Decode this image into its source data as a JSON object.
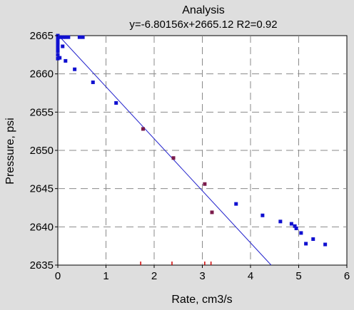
{
  "chart_data": {
    "type": "scatter",
    "title": "Analysis",
    "subtitle": "y=-6.80156x+2665.12  R2=0.92",
    "xlabel": "Rate, cm3/s",
    "ylabel": "Pressure, psi",
    "xlim": [
      0,
      6
    ],
    "ylim": [
      2635,
      2665
    ],
    "x_ticks": [
      0,
      1,
      2,
      3,
      4,
      5,
      6
    ],
    "y_ticks": [
      2635,
      2640,
      2645,
      2650,
      2655,
      2660,
      2665
    ],
    "grid": true,
    "fit_line": {
      "slope": -6.80156,
      "intercept": 2665.12,
      "color": "#2222cc"
    },
    "series": [
      {
        "color": "#1010d0",
        "points": [
          [
            0.0,
            2665.0
          ],
          [
            0.0,
            2664.6
          ],
          [
            0.0,
            2664.2
          ],
          [
            0.0,
            2663.8
          ],
          [
            0.0,
            2663.4
          ],
          [
            0.0,
            2663.0
          ],
          [
            0.0,
            2662.5
          ],
          [
            0.0,
            2662.0
          ],
          [
            0.02,
            2664.8
          ],
          [
            0.04,
            2662.1
          ],
          [
            0.07,
            2664.8
          ],
          [
            0.12,
            2664.8
          ],
          [
            0.16,
            2664.8
          ],
          [
            0.22,
            2664.8
          ],
          [
            0.1,
            2663.6
          ],
          [
            0.16,
            2661.7
          ],
          [
            0.35,
            2660.6
          ],
          [
            0.45,
            2664.8
          ],
          [
            0.52,
            2664.8
          ],
          [
            0.73,
            2658.9
          ],
          [
            1.21,
            2656.2
          ],
          [
            3.7,
            2643.0
          ],
          [
            4.25,
            2641.5
          ],
          [
            4.62,
            2640.7
          ],
          [
            4.85,
            2640.4
          ],
          [
            4.92,
            2640.1
          ],
          [
            4.95,
            2639.8
          ],
          [
            5.05,
            2639.2
          ],
          [
            5.15,
            2637.8
          ],
          [
            5.3,
            2638.4
          ],
          [
            5.55,
            2637.7
          ]
        ]
      },
      {
        "color": "#7a1a4a",
        "points": [
          [
            1.77,
            2652.8
          ],
          [
            2.4,
            2649.0
          ],
          [
            3.05,
            2645.6
          ],
          [
            3.2,
            2641.9
          ]
        ]
      }
    ],
    "rug_marks": {
      "color": "#cc0000",
      "x": [
        1.72,
        2.37,
        3.05,
        3.18
      ]
    }
  }
}
